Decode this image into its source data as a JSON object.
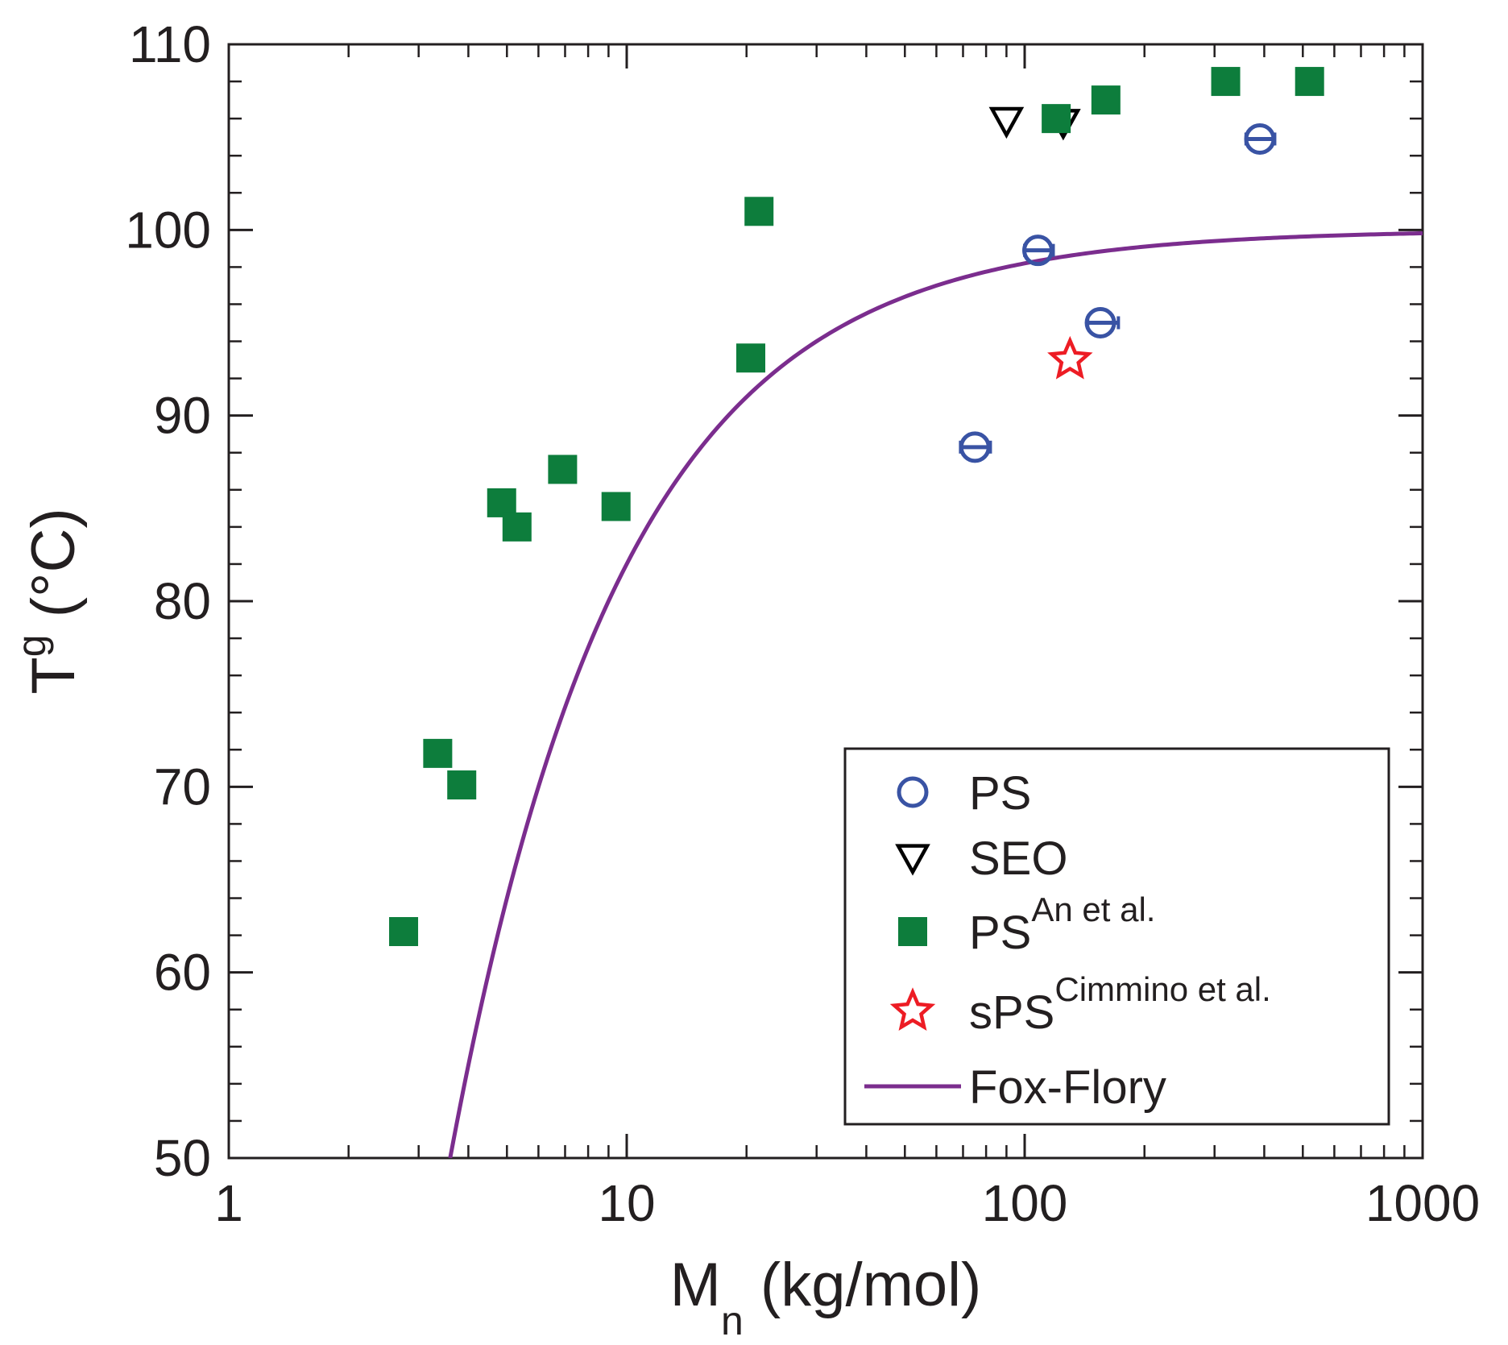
{
  "chart_data": {
    "type": "scatter",
    "x_scale": "log",
    "xlim": [
      1,
      1000
    ],
    "ylim": [
      50,
      110
    ],
    "x_ticks": [
      1,
      10,
      100,
      1000
    ],
    "x_tick_labels": [
      "1",
      "10",
      "100",
      "1000"
    ],
    "y_ticks": [
      50,
      60,
      70,
      80,
      90,
      100,
      110
    ],
    "y_tick_labels": [
      "50",
      "60",
      "70",
      "80",
      "90",
      "100",
      "110"
    ],
    "xlabel": {
      "main": "M",
      "sub": "n",
      "rest": " (kg/mol)"
    },
    "ylabel": {
      "main": "T",
      "sub": "g",
      "rest": " (°C)"
    },
    "legend_position": "bottom-right",
    "colors": {
      "PS": "#3953a4",
      "SEO": "#000000",
      "PS_An": "#0d7d3c",
      "sPS": "#ed1c24",
      "FoxFlory": "#7b2d8e",
      "axis": "#231f20"
    },
    "series": [
      {
        "name": "PS",
        "label": "PS",
        "sup": "",
        "marker": "open-circle",
        "points": [
          {
            "x": 75,
            "y": 88.3,
            "xerr": [
              69,
              82
            ]
          },
          {
            "x": 108,
            "y": 98.9,
            "xerr": [
              100,
              118
            ]
          },
          {
            "x": 155,
            "y": 95.0,
            "xerr": [
              144,
              172
            ]
          },
          {
            "x": 390,
            "y": 104.9,
            "xerr": [
              360,
              425
            ]
          }
        ]
      },
      {
        "name": "SEO",
        "label": "SEO",
        "sup": "",
        "marker": "open-triangle-down",
        "points": [
          {
            "x": 90,
            "y": 105.9
          },
          {
            "x": 125,
            "y": 105.8
          }
        ]
      },
      {
        "name": "PS_An",
        "label": "PS",
        "sup": "An et al.",
        "marker": "filled-square",
        "points": [
          {
            "x": 2.75,
            "y": 62.2
          },
          {
            "x": 3.35,
            "y": 71.8
          },
          {
            "x": 3.85,
            "y": 70.1
          },
          {
            "x": 4.85,
            "y": 85.3
          },
          {
            "x": 5.3,
            "y": 84.0
          },
          {
            "x": 6.9,
            "y": 87.1
          },
          {
            "x": 9.4,
            "y": 85.1
          },
          {
            "x": 20.5,
            "y": 93.1
          },
          {
            "x": 21.5,
            "y": 101.0
          },
          {
            "x": 120,
            "y": 106.0
          },
          {
            "x": 160,
            "y": 107.0
          },
          {
            "x": 320,
            "y": 108.0
          },
          {
            "x": 520,
            "y": 108.0
          }
        ]
      },
      {
        "name": "sPS",
        "label": "sPS",
        "sup": "Cimmino et al.",
        "marker": "open-star",
        "points": [
          {
            "x": 130,
            "y": 93.0
          }
        ]
      },
      {
        "name": "FoxFlory",
        "label": "Fox-Flory",
        "sup": "",
        "marker": "line",
        "model": {
          "Tg_inf": 100,
          "K": 180
        }
      }
    ]
  }
}
